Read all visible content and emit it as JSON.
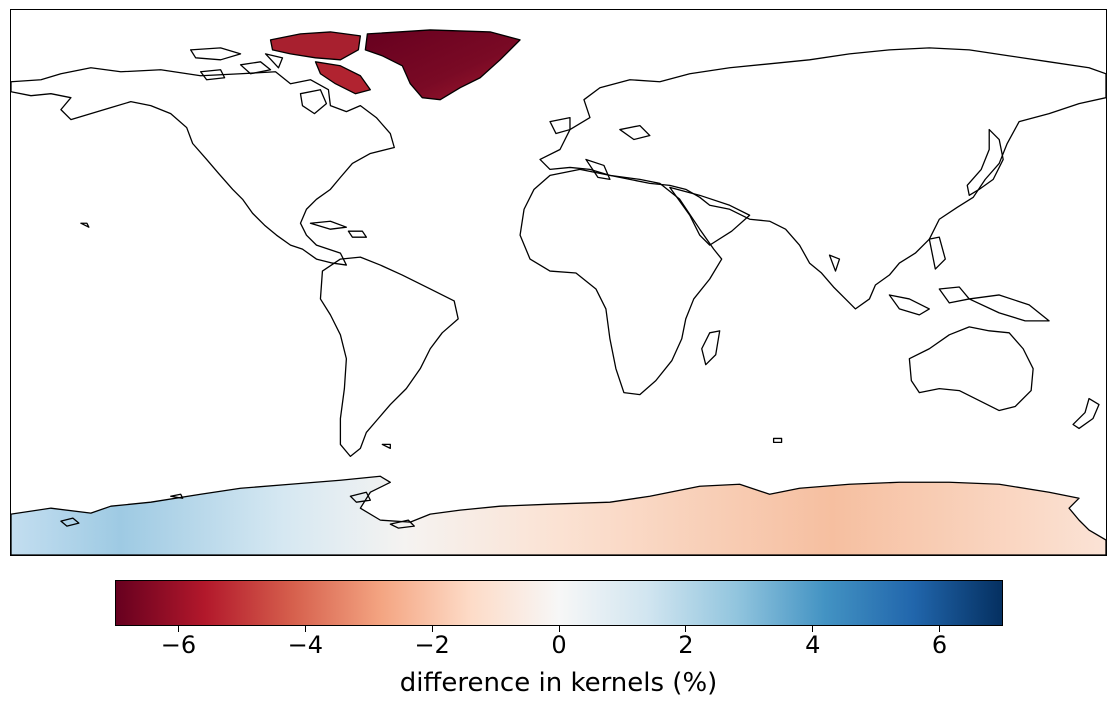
{
  "colorbar": {
    "label": "difference in kernels (%)",
    "min": -7,
    "max": 7,
    "colormap": "RdBu",
    "colors": [
      "#67001f",
      "#b2182b",
      "#d6604d",
      "#f4a582",
      "#fddbc7",
      "#f7f7f7",
      "#d1e5f0",
      "#92c5de",
      "#4393c3",
      "#2166ac",
      "#053061"
    ],
    "ticks": [
      {
        "value": -6,
        "label": "−6"
      },
      {
        "value": -4,
        "label": "−4"
      },
      {
        "value": -2,
        "label": "−2"
      },
      {
        "value": 0,
        "label": "0"
      },
      {
        "value": 2,
        "label": "2"
      },
      {
        "value": 4,
        "label": "4"
      },
      {
        "value": 6,
        "label": "6"
      }
    ]
  },
  "map": {
    "projection": "plate-carree",
    "regions": [
      {
        "name": "Greenland",
        "value": -6.5,
        "color": "#7a0a25"
      },
      {
        "name": "Canadian Arctic Archipelago",
        "value": -5.5,
        "color": "#9c1630"
      },
      {
        "name": "Antarctica West Peninsula",
        "value": 2.5,
        "color": "#a8cfe5"
      },
      {
        "name": "Antarctica East",
        "value": -2.2,
        "color": "#f7c4a5"
      }
    ]
  }
}
